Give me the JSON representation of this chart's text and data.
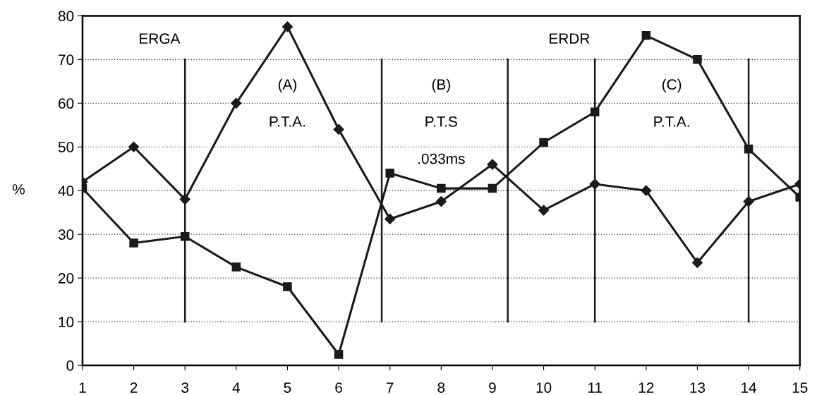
{
  "chart_data": {
    "type": "line",
    "ylabel": "%",
    "xlim": [
      1,
      15
    ],
    "xticks": [
      1,
      2,
      3,
      4,
      5,
      6,
      7,
      8,
      9,
      10,
      11,
      12,
      13,
      14,
      15
    ],
    "ylim": [
      0,
      80
    ],
    "yticks": [
      0,
      10,
      20,
      30,
      40,
      50,
      60,
      70,
      80
    ],
    "grid": "y",
    "legend": false,
    "series": [
      {
        "color": "#1a1a1a",
        "marker": "diamond",
        "x": [
          1,
          2,
          3,
          4,
          5,
          6,
          7,
          8,
          9,
          10,
          11,
          12,
          13,
          14,
          15
        ],
        "values": [
          42,
          50,
          38,
          60,
          77.5,
          54,
          33.5,
          37.5,
          46,
          35.5,
          41.5,
          40,
          23.5,
          37.5,
          41.5
        ]
      },
      {
        "color": "#1a1a1a",
        "marker": "square",
        "x": [
          1,
          2,
          3,
          4,
          5,
          6,
          7,
          8,
          9,
          10,
          11,
          12,
          13,
          14,
          15
        ],
        "values": [
          40.5,
          28,
          29.5,
          22.5,
          18,
          2.5,
          44,
          40.5,
          40.5,
          51,
          58,
          75.5,
          70,
          49.5,
          38.5
        ]
      }
    ],
    "ref_lines": [
      {
        "axis": "x",
        "value": 3,
        "color": "#1a1a1a"
      },
      {
        "axis": "x",
        "value": 6.84,
        "color": "#1a1a1a"
      },
      {
        "axis": "x",
        "value": 9.3,
        "color": "#1a1a1a"
      },
      {
        "axis": "x",
        "value": 11,
        "color": "#1a1a1a"
      },
      {
        "axis": "x",
        "value": 14,
        "color": "#1a1a1a"
      }
    ],
    "annotations": [
      "ERGA",
      "(A)",
      "P.T.A.",
      "(B)",
      "P.T.S",
      ".033ms",
      "ERDR",
      "(C)",
      "P.T.A."
    ]
  }
}
